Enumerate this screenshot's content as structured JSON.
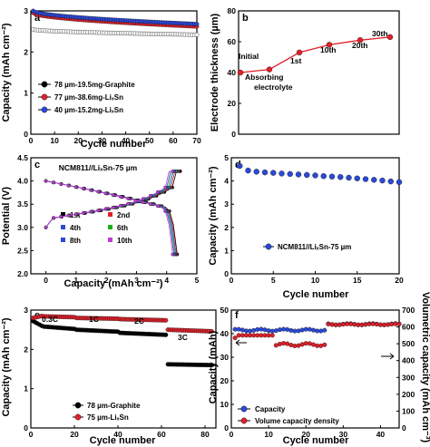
{
  "chart_data": [
    {
      "panel": "a",
      "type": "scatter",
      "xlabel": "Cycle number",
      "ylabel": "Capacity (mAh cm⁻²)",
      "xlim": [
        0,
        70
      ],
      "ylim": [
        0,
        3
      ],
      "xticks": [
        "0",
        "10",
        "20",
        "30",
        "40",
        "50",
        "60",
        "70"
      ],
      "yticks": [
        "0",
        "1",
        "2",
        "3"
      ],
      "legend_position": "bottom-left",
      "series": [
        {
          "name": "78 µm-19.5mg-Graphite",
          "color": "#000000",
          "start": 2.55,
          "end": 2.42
        },
        {
          "name": "77 µm-38.6mg-LiₓSn",
          "color": "#e0202a",
          "start": 2.95,
          "end": 2.62
        },
        {
          "name": "40 µm-15.2mg-LiₓSn",
          "color": "#2b49d8",
          "start": 3.0,
          "end": 2.68
        }
      ]
    },
    {
      "panel": "b",
      "type": "line",
      "ylabel": "Electrode thickness (µm)",
      "ylim": [
        0,
        80
      ],
      "yticks": [
        "0",
        "20",
        "40",
        "60",
        "80"
      ],
      "points": [
        {
          "label": "Initial",
          "y": 40
        },
        {
          "label": "Absorbing electrolyte",
          "y": 42
        },
        {
          "label": "1st",
          "y": 53
        },
        {
          "label": "10th",
          "y": 58
        },
        {
          "label": "20th",
          "y": 61
        },
        {
          "label": "30th",
          "y": 63
        }
      ]
    },
    {
      "panel": "c",
      "type": "line",
      "title": "NCM811//LiₓSn-75 µm",
      "xlabel": "Capacity (mAh cm⁻²)",
      "ylabel": "Potential (V)",
      "xlim": [
        -0.5,
        5
      ],
      "ylim": [
        2.0,
        4.5
      ],
      "xticks": [
        "0",
        "1",
        "2",
        "3",
        "4",
        "5"
      ],
      "yticks": [
        "2.0",
        "2.5",
        "3.0",
        "3.5",
        "4.0",
        "4.5"
      ],
      "series": [
        {
          "name": "1st",
          "color": "#000000",
          "charge_cap": 4.45,
          "discharge_cap": 4.35
        },
        {
          "name": "2nd",
          "color": "#e0202a",
          "charge_cap": 4.4,
          "discharge_cap": 4.33
        },
        {
          "name": "4th",
          "color": "#2b49d8",
          "charge_cap": 4.35,
          "discharge_cap": 4.3
        },
        {
          "name": "6th",
          "color": "#18b21f",
          "charge_cap": 4.3,
          "discharge_cap": 4.27
        },
        {
          "name": "8th",
          "color": "#2b49d8",
          "charge_cap": 4.25,
          "discharge_cap": 4.24
        },
        {
          "name": "10th",
          "color": "#c23bd6",
          "charge_cap": 4.2,
          "discharge_cap": 4.2
        }
      ]
    },
    {
      "panel": "d",
      "type": "scatter",
      "xlabel": "Cycle number",
      "ylabel": "Capacity (mAh cm⁻²)",
      "xlim": [
        0,
        20
      ],
      "ylim": [
        0,
        5
      ],
      "xticks": [
        "0",
        "5",
        "10",
        "15",
        "20"
      ],
      "yticks": [
        "0",
        "1",
        "2",
        "3",
        "4",
        "5"
      ],
      "series": [
        {
          "name": "NCM811//LiₓSn-75 µm",
          "color": "#2b49d8",
          "x": [
            1,
            2,
            3,
            4,
            5,
            6,
            7,
            8,
            9,
            10,
            11,
            12,
            13,
            14,
            15,
            16,
            17,
            18,
            19,
            20
          ],
          "values": [
            4.65,
            4.45,
            4.4,
            4.37,
            4.35,
            4.32,
            4.3,
            4.28,
            4.26,
            4.24,
            4.21,
            4.19,
            4.17,
            4.14,
            4.11,
            4.08,
            4.05,
            4.02,
            3.98,
            3.95
          ]
        }
      ]
    },
    {
      "panel": "e",
      "type": "scatter",
      "xlabel": "Cycle number",
      "ylabel": "Capacity (mAh cm⁻²)",
      "xlim": [
        0,
        85
      ],
      "ylim": [
        0,
        3
      ],
      "xticks": [
        "0",
        "20",
        "40",
        "60",
        "80"
      ],
      "yticks": [
        "0",
        "1",
        "2",
        "3"
      ],
      "rate_labels": [
        "0.3C",
        "1C",
        "2C",
        "3C"
      ],
      "series": [
        {
          "name": "78 µm-Graphite",
          "color": "#000000",
          "segments": [
            {
              "from": 1,
              "to": 5,
              "v0": 2.72,
              "v1": 2.6
            },
            {
              "from": 6,
              "to": 20,
              "v0": 2.58,
              "v1": 2.52
            },
            {
              "from": 21,
              "to": 40,
              "v0": 2.5,
              "v1": 2.45
            },
            {
              "from": 41,
              "to": 62,
              "v0": 2.42,
              "v1": 2.37
            },
            {
              "from": 63,
              "to": 83,
              "v0": 1.62,
              "v1": 1.6
            }
          ]
        },
        {
          "name": "75 µm-LiₓSn",
          "color": "#e0202a",
          "segments": [
            {
              "from": 1,
              "to": 5,
              "v0": 2.8,
              "v1": 2.85
            },
            {
              "from": 6,
              "to": 20,
              "v0": 2.84,
              "v1": 2.82
            },
            {
              "from": 21,
              "to": 40,
              "v0": 2.8,
              "v1": 2.78
            },
            {
              "from": 41,
              "to": 62,
              "v0": 2.77,
              "v1": 2.74
            },
            {
              "from": 63,
              "to": 83,
              "v0": 2.5,
              "v1": 2.46
            }
          ]
        }
      ]
    },
    {
      "panel": "f",
      "type": "scatter",
      "xlabel": "Cycle number",
      "ylabel": "Capacity (mAh)",
      "y2label": "Volumetric capacity (mAh cm⁻³)",
      "xlim": [
        0,
        45
      ],
      "ylim": [
        0,
        50
      ],
      "y2lim": [
        0,
        700
      ],
      "xticks": [
        "0",
        "10",
        "20",
        "30",
        "40"
      ],
      "yticks": [
        "0",
        "10",
        "20",
        "30",
        "40",
        "50"
      ],
      "y2ticks": [
        "0",
        "100",
        "200",
        "300",
        "400",
        "500",
        "600",
        "700"
      ],
      "series": [
        {
          "name": "Capacity",
          "color": "#2b49d8",
          "axis": "left"
        },
        {
          "name": "Volume capacity density",
          "color": "#e0202a",
          "axis": "right"
        }
      ]
    }
  ],
  "panels": [
    "a",
    "b",
    "c",
    "d",
    "e",
    "f"
  ]
}
